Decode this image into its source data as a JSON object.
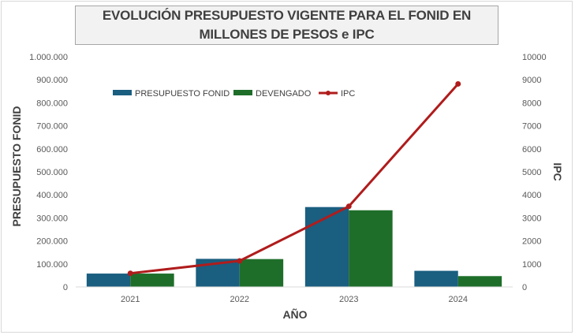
{
  "chart_data": {
    "type": "bar",
    "title": "EVOLUCIÓN PRESUPUESTO VIGENTE PARA EL FONID EN MILLONES DE PESOS e IPC",
    "xlabel": "AÑO",
    "ylabel": "PRESUPUESTO FONID",
    "y2label": "IPC",
    "categories": [
      "2021",
      "2022",
      "2023",
      "2024"
    ],
    "ylim": [
      0,
      1000000
    ],
    "y2lim": [
      0,
      10000
    ],
    "y_ticks": [
      "0",
      "100.000",
      "200.000",
      "300.000",
      "400.000",
      "500.000",
      "600.000",
      "700.000",
      "800.000",
      "900.000",
      "1.000.000"
    ],
    "y2_ticks": [
      "0",
      "1000",
      "2000",
      "3000",
      "4000",
      "5000",
      "6000",
      "7000",
      "8000",
      "9000",
      "10000"
    ],
    "series": [
      {
        "name": "PRESUPUESTO FONID",
        "type": "bar",
        "axis": "left",
        "color": "#1a5e80",
        "values": [
          58000,
          122000,
          347000,
          70000
        ]
      },
      {
        "name": "DEVENGADO",
        "type": "bar",
        "axis": "left",
        "color": "#1e6e2a",
        "values": [
          58000,
          121000,
          333000,
          47000
        ]
      },
      {
        "name": "IPC",
        "type": "line",
        "axis": "right",
        "color": "#b01c1c",
        "values": [
          590,
          1130,
          3500,
          8820
        ]
      }
    ],
    "legend_position": "top-left",
    "grid": false
  }
}
